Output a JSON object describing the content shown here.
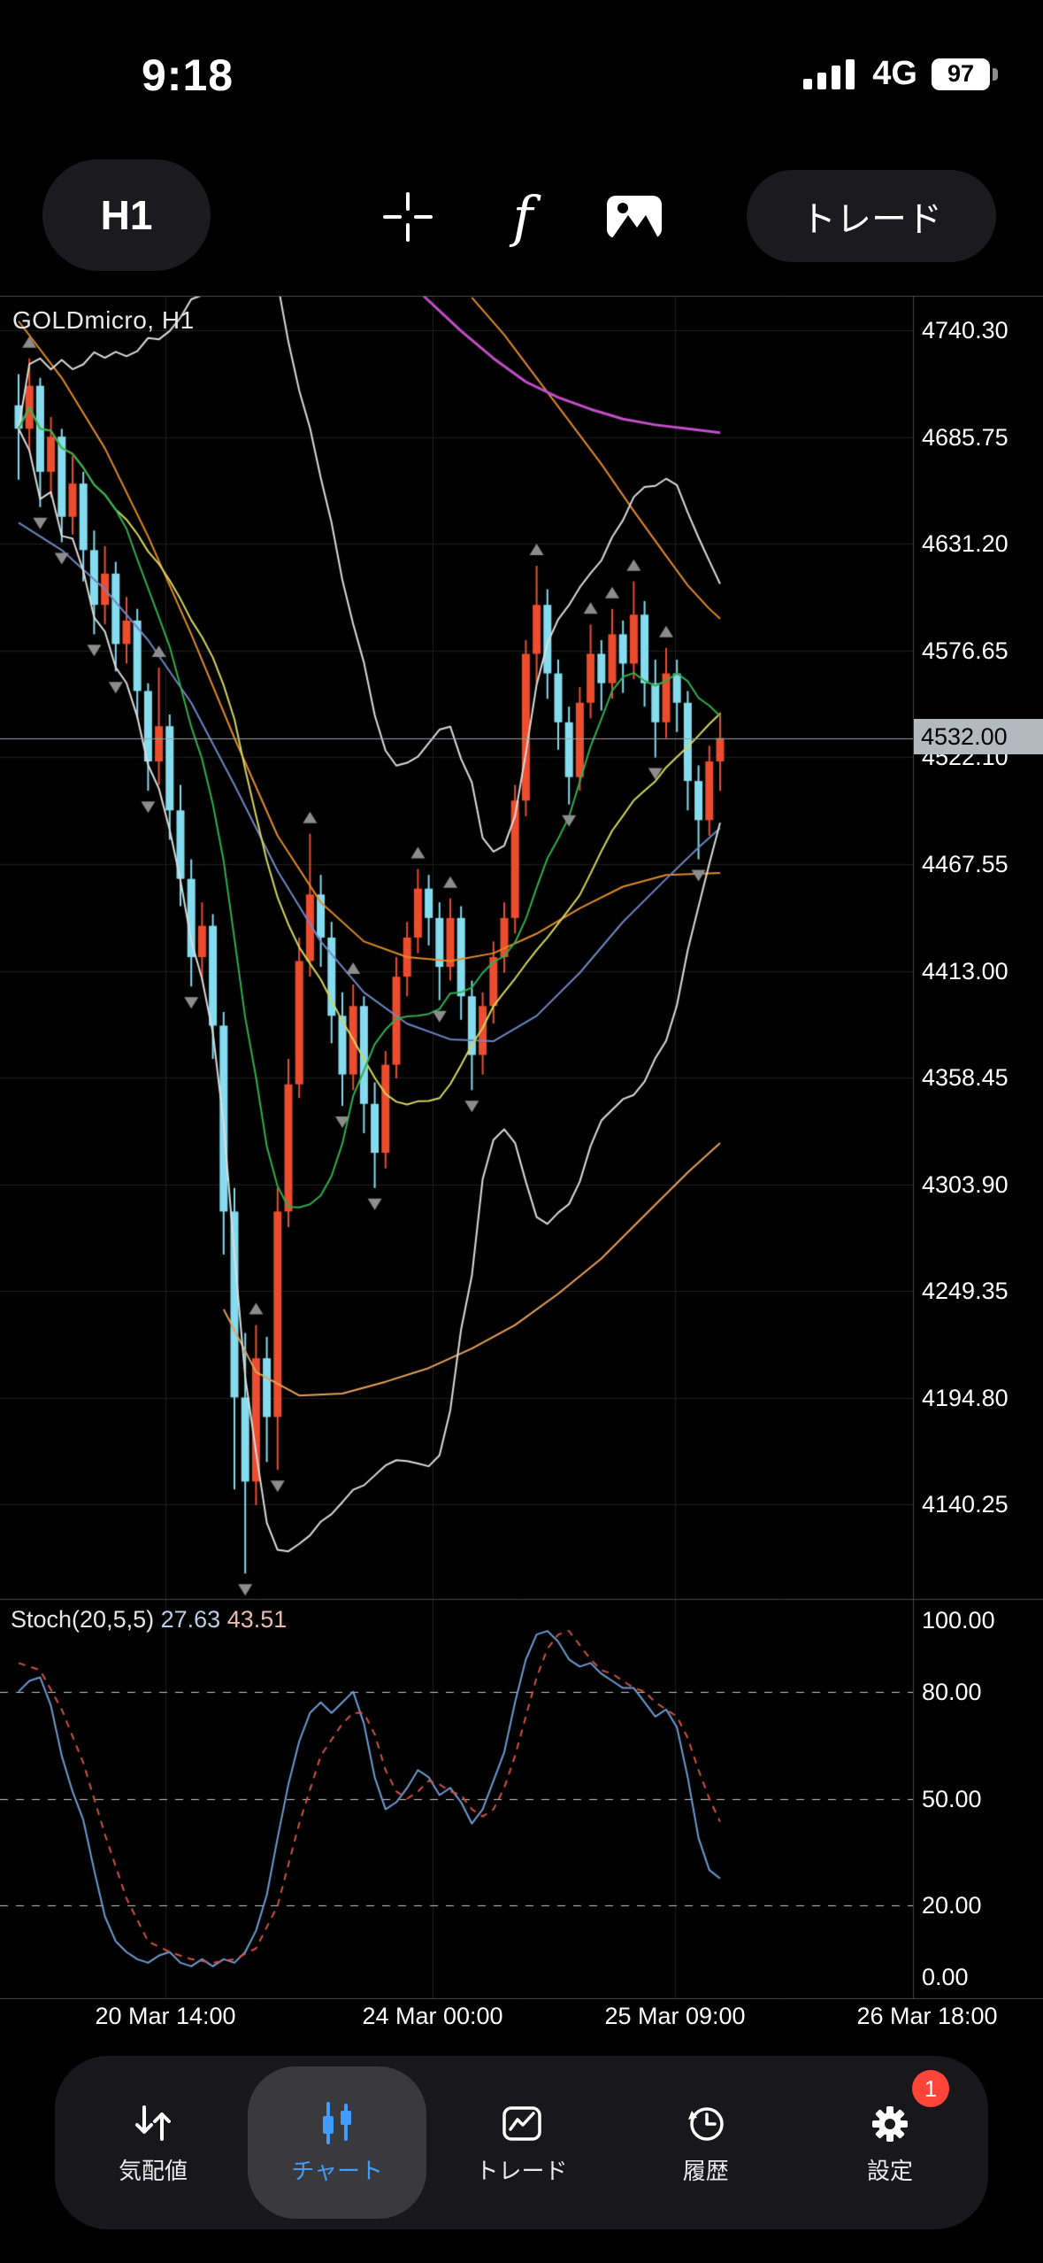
{
  "status_bar": {
    "time": "9:18",
    "network": "4G",
    "battery": "97"
  },
  "toolbar": {
    "timeframe": "H1",
    "trade_label": "トレード"
  },
  "chart": {
    "title": "GOLDmicro, H1",
    "current_price": "4532.00",
    "price_axis": [
      "4740.30",
      "4685.75",
      "4631.20",
      "4576.65",
      "4522.10",
      "4467.55",
      "4413.00",
      "4358.45",
      "4303.90",
      "4249.35",
      "4194.80",
      "4140.25"
    ],
    "time_axis": [
      "20 Mar 14:00",
      "24 Mar 00:00",
      "25 Mar 09:00",
      "26 Mar 18:00"
    ]
  },
  "stoch": {
    "name": "Stoch(20,5,5)",
    "value_k": "27.63",
    "value_d": "43.51",
    "scale": [
      "100.00",
      "80.00",
      "50.00",
      "20.00",
      "0.00"
    ]
  },
  "tab_bar": {
    "items": [
      {
        "label": "気配値",
        "icon": "quotes-arrows-icon",
        "selected": false
      },
      {
        "label": "チャート",
        "icon": "candlestick-chart-icon",
        "selected": true
      },
      {
        "label": "トレード",
        "icon": "trade-chart-icon",
        "selected": false
      },
      {
        "label": "履歴",
        "icon": "history-clock-icon",
        "selected": false
      },
      {
        "label": "設定",
        "icon": "settings-gear-icon",
        "selected": false,
        "badge": "1"
      }
    ]
  },
  "colors": {
    "accent_blue": "#409cff",
    "up_candle": "#ec4d2e",
    "down_candle": "#86dcef",
    "badge_bg": "#b4b8bf",
    "grid": "#1e1e20",
    "border": "#46464a",
    "fractal": "#8c8c8c",
    "current_price_line": "#9aa0a6"
  },
  "chart_data": {
    "type": "candlestick",
    "symbol": "GOLDmicro",
    "timeframe": "H1",
    "y_range": [
      4092,
      4758
    ],
    "current_price": 4532.0,
    "price_gridlines": [
      4740.3,
      4685.75,
      4631.2,
      4576.65,
      4522.1,
      4467.55,
      4413.0,
      4358.45,
      4303.9,
      4249.35,
      4194.8,
      4140.25
    ],
    "candles": [
      [
        4702,
        4718,
        4664,
        4690
      ],
      [
        4690,
        4726,
        4678,
        4712
      ],
      [
        4712,
        4716,
        4650,
        4668
      ],
      [
        4668,
        4696,
        4655,
        4686
      ],
      [
        4686,
        4690,
        4632,
        4645
      ],
      [
        4645,
        4676,
        4636,
        4662
      ],
      [
        4662,
        4668,
        4612,
        4628
      ],
      [
        4628,
        4638,
        4585,
        4600
      ],
      [
        4600,
        4630,
        4590,
        4616
      ],
      [
        4616,
        4622,
        4566,
        4580
      ],
      [
        4580,
        4604,
        4570,
        4592
      ],
      [
        4592,
        4598,
        4542,
        4556
      ],
      [
        4556,
        4560,
        4505,
        4520
      ],
      [
        4520,
        4568,
        4508,
        4538
      ],
      [
        4538,
        4544,
        4480,
        4495
      ],
      [
        4495,
        4508,
        4446,
        4460
      ],
      [
        4460,
        4470,
        4405,
        4420
      ],
      [
        4420,
        4448,
        4408,
        4436
      ],
      [
        4436,
        4442,
        4368,
        4385
      ],
      [
        4385,
        4392,
        4268,
        4290
      ],
      [
        4290,
        4302,
        4148,
        4195
      ],
      [
        4195,
        4228,
        4105,
        4152
      ],
      [
        4152,
        4232,
        4140,
        4215
      ],
      [
        4215,
        4226,
        4162,
        4185
      ],
      [
        4185,
        4302,
        4158,
        4290
      ],
      [
        4290,
        4368,
        4282,
        4355
      ],
      [
        4355,
        4430,
        4348,
        4418
      ],
      [
        4418,
        4483,
        4410,
        4452
      ],
      [
        4452,
        4462,
        4415,
        4430
      ],
      [
        4430,
        4438,
        4376,
        4390
      ],
      [
        4390,
        4402,
        4344,
        4360
      ],
      [
        4360,
        4406,
        4352,
        4395
      ],
      [
        4395,
        4400,
        4330,
        4345
      ],
      [
        4345,
        4356,
        4302,
        4320
      ],
      [
        4320,
        4372,
        4312,
        4365
      ],
      [
        4365,
        4420,
        4358,
        4410
      ],
      [
        4410,
        4438,
        4400,
        4430
      ],
      [
        4430,
        4465,
        4422,
        4455
      ],
      [
        4455,
        4462,
        4426,
        4440
      ],
      [
        4440,
        4448,
        4398,
        4415
      ],
      [
        4415,
        4450,
        4408,
        4440
      ],
      [
        4440,
        4446,
        4388,
        4400
      ],
      [
        4400,
        4408,
        4352,
        4370
      ],
      [
        4370,
        4402,
        4360,
        4395
      ],
      [
        4395,
        4428,
        4386,
        4420
      ],
      [
        4420,
        4448,
        4412,
        4440
      ],
      [
        4440,
        4508,
        4432,
        4500
      ],
      [
        4500,
        4582,
        4492,
        4575
      ],
      [
        4575,
        4620,
        4560,
        4600
      ],
      [
        4600,
        4608,
        4552,
        4565
      ],
      [
        4565,
        4572,
        4526,
        4540
      ],
      [
        4540,
        4548,
        4498,
        4512
      ],
      [
        4512,
        4558,
        4505,
        4550
      ],
      [
        4550,
        4590,
        4542,
        4575
      ],
      [
        4575,
        4582,
        4546,
        4560
      ],
      [
        4560,
        4598,
        4552,
        4585
      ],
      [
        4585,
        4592,
        4555,
        4570
      ],
      [
        4570,
        4612,
        4562,
        4595
      ],
      [
        4595,
        4602,
        4548,
        4560
      ],
      [
        4560,
        4572,
        4522,
        4540
      ],
      [
        4540,
        4578,
        4532,
        4565
      ],
      [
        4565,
        4572,
        4535,
        4550
      ],
      [
        4550,
        4556,
        4495,
        4510
      ],
      [
        4510,
        4518,
        4470,
        4490
      ],
      [
        4490,
        4528,
        4482,
        4520
      ],
      [
        4520,
        4545,
        4505,
        4532
      ]
    ],
    "overlays": [
      {
        "name": "band-peach-lower",
        "type": "points",
        "color": "#e8a05a",
        "width": 2,
        "points": [
          [
            19,
            4240
          ],
          [
            22,
            4208
          ],
          [
            26,
            4196
          ],
          [
            30,
            4197
          ],
          [
            34,
            4203
          ],
          [
            38,
            4210
          ],
          [
            42,
            4220
          ],
          [
            46,
            4232
          ],
          [
            50,
            4248
          ],
          [
            54,
            4266
          ],
          [
            58,
            4288
          ],
          [
            62,
            4310
          ],
          [
            65,
            4325
          ]
        ]
      },
      {
        "name": "ma-orange",
        "type": "points",
        "color": "#e08a2a",
        "width": 2,
        "points": [
          [
            0,
            4745
          ],
          [
            4,
            4716
          ],
          [
            8,
            4680
          ],
          [
            12,
            4635
          ],
          [
            16,
            4585
          ],
          [
            20,
            4532
          ],
          [
            24,
            4482
          ],
          [
            28,
            4448
          ],
          [
            32,
            4428
          ],
          [
            36,
            4420
          ],
          [
            40,
            4418
          ],
          [
            44,
            4422
          ],
          [
            48,
            4432
          ],
          [
            52,
            4445
          ],
          [
            56,
            4456
          ],
          [
            60,
            4462
          ],
          [
            65,
            4463
          ]
        ]
      },
      {
        "name": "ma-orange-long",
        "type": "points",
        "color": "#e08a2a",
        "width": 2,
        "points": [
          [
            42,
            4757
          ],
          [
            45,
            4738
          ],
          [
            48,
            4716
          ],
          [
            51,
            4694
          ],
          [
            54,
            4672
          ],
          [
            57,
            4648
          ],
          [
            60,
            4625
          ],
          [
            62,
            4610
          ],
          [
            64,
            4598
          ],
          [
            65,
            4593
          ]
        ]
      },
      {
        "name": "ma-magenta",
        "type": "points",
        "color": "#c44ec9",
        "width": 3,
        "points": [
          [
            37.5,
            4758
          ],
          [
            41,
            4740
          ],
          [
            44,
            4726
          ],
          [
            47,
            4714
          ],
          [
            50,
            4706
          ],
          [
            53,
            4700
          ],
          [
            56,
            4695
          ],
          [
            59,
            4692
          ],
          [
            62,
            4690
          ],
          [
            65,
            4688
          ]
        ]
      },
      {
        "name": "ma-blue",
        "type": "points",
        "color": "#6d87c4",
        "width": 2,
        "points": [
          [
            0,
            4642
          ],
          [
            4,
            4628
          ],
          [
            8,
            4608
          ],
          [
            12,
            4582
          ],
          [
            16,
            4550
          ],
          [
            20,
            4508
          ],
          [
            24,
            4464
          ],
          [
            28,
            4428
          ],
          [
            32,
            4402
          ],
          [
            36,
            4386
          ],
          [
            40,
            4378
          ],
          [
            44,
            4377
          ],
          [
            48,
            4390
          ],
          [
            52,
            4412
          ],
          [
            56,
            4438
          ],
          [
            60,
            4460
          ],
          [
            63,
            4476
          ],
          [
            65,
            4486
          ]
        ]
      },
      {
        "name": "bollinger-bands",
        "type": "bollinger",
        "period": 20,
        "dev": 2,
        "color": "#dcdcdc",
        "width": 2
      },
      {
        "name": "ma-yellow",
        "type": "sma",
        "period": 21,
        "color": "#d6d65c",
        "width": 2
      },
      {
        "name": "ma-green",
        "type": "sma",
        "period": 10,
        "color": "#2fae4e",
        "width": 2
      }
    ],
    "fractal_arrows": {
      "window": 1,
      "color": "#8c8c8c"
    },
    "stoch_panel": {
      "label": "Stoch(20,5,5)",
      "k_value": 27.63,
      "d_value": 43.51,
      "range": [
        0,
        100
      ],
      "levels": [
        80,
        50,
        20
      ],
      "k_color": "#6e9bd3",
      "d_color": "#cf5340",
      "k_points": [
        [
          0,
          80
        ],
        [
          1,
          83
        ],
        [
          2,
          84
        ],
        [
          3,
          76
        ],
        [
          4,
          62
        ],
        [
          5,
          52
        ],
        [
          6,
          44
        ],
        [
          7,
          30
        ],
        [
          8,
          17
        ],
        [
          9,
          10
        ],
        [
          10,
          7
        ],
        [
          11,
          5
        ],
        [
          12,
          4
        ],
        [
          13,
          6
        ],
        [
          14,
          7
        ],
        [
          15,
          4
        ],
        [
          16,
          3
        ],
        [
          17,
          5
        ],
        [
          18,
          3
        ],
        [
          19,
          5
        ],
        [
          20,
          4
        ],
        [
          21,
          7
        ],
        [
          22,
          13
        ],
        [
          23,
          23
        ],
        [
          24,
          39
        ],
        [
          25,
          54
        ],
        [
          26,
          66
        ],
        [
          27,
          74
        ],
        [
          28,
          77
        ],
        [
          29,
          74
        ],
        [
          30,
          77
        ],
        [
          31,
          80
        ],
        [
          32,
          71
        ],
        [
          33,
          56
        ],
        [
          34,
          47
        ],
        [
          35,
          49
        ],
        [
          36,
          53
        ],
        [
          37,
          58
        ],
        [
          38,
          56
        ],
        [
          39,
          51
        ],
        [
          40,
          53
        ],
        [
          41,
          49
        ],
        [
          42,
          43
        ],
        [
          43,
          47
        ],
        [
          44,
          55
        ],
        [
          45,
          63
        ],
        [
          46,
          77
        ],
        [
          47,
          89
        ],
        [
          48,
          96
        ],
        [
          49,
          97
        ],
        [
          50,
          94
        ],
        [
          51,
          89
        ],
        [
          52,
          87
        ],
        [
          53,
          88
        ],
        [
          54,
          85
        ],
        [
          55,
          83
        ],
        [
          56,
          81
        ],
        [
          57,
          81
        ],
        [
          58,
          77
        ],
        [
          59,
          73
        ],
        [
          60,
          75
        ],
        [
          61,
          70
        ],
        [
          62,
          56
        ],
        [
          63,
          39
        ],
        [
          64,
          30
        ],
        [
          65,
          27.6
        ]
      ],
      "d_points": [
        [
          0,
          88
        ],
        [
          2,
          86
        ],
        [
          4,
          75
        ],
        [
          6,
          60
        ],
        [
          8,
          40
        ],
        [
          10,
          22
        ],
        [
          12,
          10
        ],
        [
          14,
          7
        ],
        [
          16,
          5
        ],
        [
          18,
          4
        ],
        [
          20,
          5
        ],
        [
          22,
          8
        ],
        [
          24,
          20
        ],
        [
          26,
          43
        ],
        [
          28,
          62
        ],
        [
          30,
          71
        ],
        [
          31,
          74
        ],
        [
          32,
          74
        ],
        [
          33,
          68
        ],
        [
          34,
          58
        ],
        [
          35,
          52
        ],
        [
          36,
          50
        ],
        [
          37,
          52
        ],
        [
          38,
          55
        ],
        [
          39,
          54
        ],
        [
          40,
          52
        ],
        [
          41,
          51
        ],
        [
          42,
          47
        ],
        [
          43,
          45
        ],
        [
          44,
          47
        ],
        [
          45,
          53
        ],
        [
          46,
          62
        ],
        [
          47,
          73
        ],
        [
          48,
          84
        ],
        [
          49,
          92
        ],
        [
          50,
          96
        ],
        [
          51,
          97
        ],
        [
          52,
          93
        ],
        [
          53,
          89
        ],
        [
          54,
          86
        ],
        [
          55,
          85
        ],
        [
          56,
          83
        ],
        [
          57,
          81
        ],
        [
          58,
          80
        ],
        [
          59,
          77
        ],
        [
          60,
          75
        ],
        [
          61,
          73
        ],
        [
          62,
          67
        ],
        [
          63,
          58
        ],
        [
          64,
          50
        ],
        [
          65,
          43.5
        ]
      ]
    }
  }
}
